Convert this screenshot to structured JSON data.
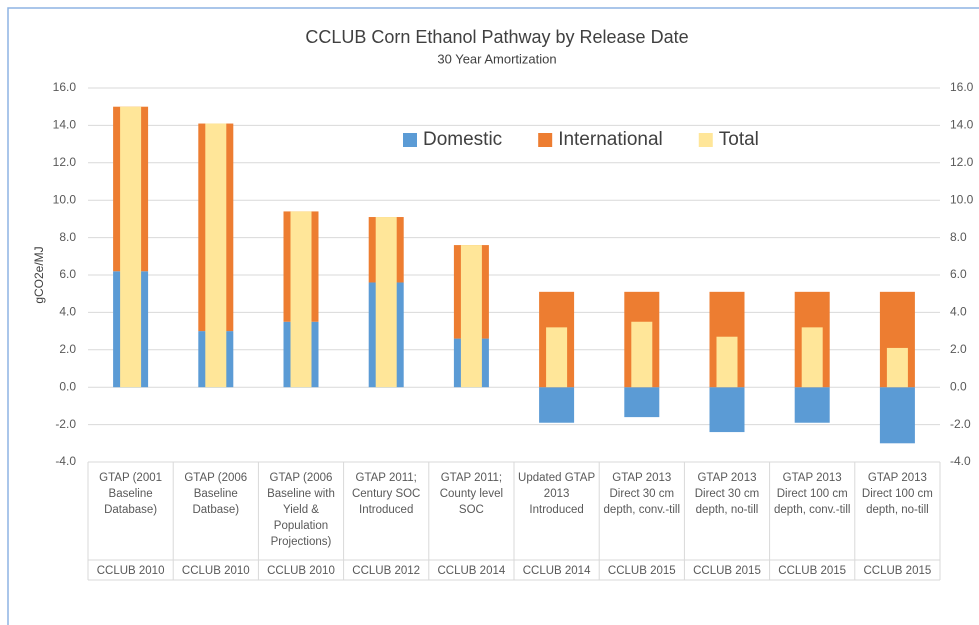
{
  "chart_data": {
    "type": "bar",
    "stacked": true,
    "title": "CCLUB Corn Ethanol Pathway by Release Date",
    "subtitle": "30 Year Amortization",
    "ylabel": "gCO2e/MJ",
    "categories": [
      "GTAP (2001 Baseline Database)",
      "GTAP (2006 Baseline Datbase)",
      "GTAP (2006 Baseline with Yield & Population Projections)",
      "GTAP 2011; Century SOC Introduced",
      "GTAP 2011; County level SOC",
      "Updated GTAP 2013 Introduced",
      "GTAP 2013 Direct 30 cm depth, conv.-till",
      "GTAP 2013 Direct 30 cm depth, no-till",
      "GTAP 2013 Direct 100 cm depth, conv.-till",
      "GTAP 2013 Direct 100 cm depth, no-till"
    ],
    "groups": [
      "CCLUB 2010",
      "CCLUB 2010",
      "CCLUB 2010",
      "CCLUB 2012",
      "CCLUB 2014",
      "CCLUB 2014",
      "CCLUB 2015",
      "CCLUB 2015",
      "CCLUB 2015",
      "CCLUB 2015"
    ],
    "series": [
      {
        "name": "Domestic",
        "color": "#5b9bd5",
        "values": [
          6.2,
          3.0,
          3.5,
          5.6,
          2.6,
          -1.9,
          -1.6,
          -2.4,
          -1.9,
          -3.0
        ]
      },
      {
        "name": "International",
        "color": "#ed7d31",
        "values": [
          8.8,
          11.1,
          5.9,
          3.5,
          5.0,
          5.1,
          5.1,
          5.1,
          5.1,
          5.1
        ]
      },
      {
        "name": "Total",
        "color": "#ffe699",
        "overlay": true,
        "values": [
          15.0,
          14.1,
          9.4,
          9.1,
          7.6,
          3.2,
          3.5,
          2.7,
          3.2,
          2.1
        ]
      }
    ],
    "ylim": [
      -4,
      16
    ],
    "yticks": [
      {
        "value": -4,
        "label": "-4.0"
      },
      {
        "value": -2,
        "label": "-2.0"
      },
      {
        "value": 0,
        "label": "0.0"
      },
      {
        "value": 2,
        "label": "2.0"
      },
      {
        "value": 4,
        "label": "4.0"
      },
      {
        "value": 6,
        "label": "6.0"
      },
      {
        "value": 8,
        "label": "8.0"
      },
      {
        "value": 10,
        "label": "10.0"
      },
      {
        "value": 12,
        "label": "12.0"
      },
      {
        "value": 14,
        "label": "14.0"
      },
      {
        "value": 16,
        "label": "16.0"
      }
    ],
    "y2lim": [
      -4,
      16
    ],
    "y2ticks": [
      {
        "value": -4,
        "label": "-4.0"
      },
      {
        "value": -2,
        "label": "-2.0"
      },
      {
        "value": 0,
        "label": "0.0"
      },
      {
        "value": 2,
        "label": "2.0"
      },
      {
        "value": 4,
        "label": "4.0"
      },
      {
        "value": 6,
        "label": "6.0"
      },
      {
        "value": 8,
        "label": "8.0"
      },
      {
        "value": 10,
        "label": "10.0"
      },
      {
        "value": 12,
        "label": "12.0"
      },
      {
        "value": 14,
        "label": "14.0"
      },
      {
        "value": 16,
        "label": "16.0"
      }
    ],
    "grid": true,
    "legend": "upper right"
  }
}
